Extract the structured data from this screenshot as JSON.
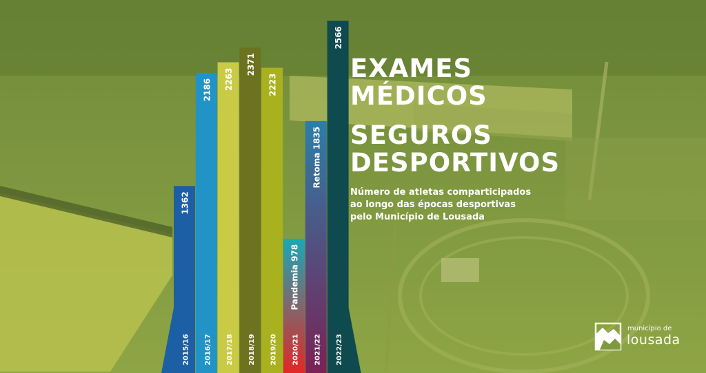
{
  "title_lines": [
    "EXAMES",
    "MÉDICOS"
  ],
  "title2_lines": [
    "SEGUROS",
    "DESPORTIVOS"
  ],
  "subtitle_lines": [
    "Número de atletas comparticipados",
    "ao longo das épocas desportivas",
    "pelo Município de Lousada"
  ],
  "logo": {
    "top": "município de",
    "main": "lousada"
  },
  "colors": {
    "background": "#7f9a3e",
    "bar_colors": [
      "#1d5fa4",
      "#2193c6",
      "#c9cb45",
      "#6b7220",
      "#a9b11e",
      "#e42625",
      "#7a2256",
      "#0e4a4e"
    ],
    "bar_gradient_tops": [
      null,
      null,
      null,
      null,
      null,
      "#1aa8b6",
      "#2c7ea8",
      null
    ]
  },
  "chart_data": {
    "type": "bar",
    "categories": [
      "2015/16",
      "2016/17",
      "2017/18",
      "2018/19",
      "2019/20",
      "2020/21",
      "2021/22",
      "2022/23"
    ],
    "values": [
      1362,
      2186,
      2263,
      2371,
      2223,
      978,
      1835,
      2566
    ],
    "value_labels": [
      "1362",
      "2186",
      "2263",
      "2371",
      "2223",
      "Pandemia  978",
      "Retoma  1835",
      "2566"
    ],
    "orientation": "vertical",
    "label_orientation": "rotated-90"
  }
}
